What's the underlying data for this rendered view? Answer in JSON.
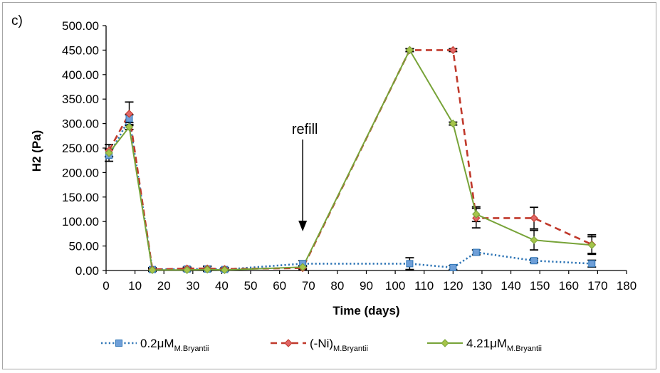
{
  "chart_data": {
    "type": "line",
    "panel_label": "c)",
    "xlabel": "Time (days)",
    "ylabel": "H2  (Pa)",
    "xlim": [
      0,
      180
    ],
    "ylim": [
      0,
      500
    ],
    "x_ticks": [
      "0",
      "10",
      "20",
      "30",
      "40",
      "50",
      "60",
      "70",
      "80",
      "90",
      "100",
      "110",
      "120",
      "130",
      "140",
      "150",
      "160",
      "170",
      "180"
    ],
    "y_ticks": [
      "0.00",
      "50.00",
      "100.00",
      "150.00",
      "200.00",
      "250.00",
      "300.00",
      "350.00",
      "400.00",
      "450.00",
      "500.00"
    ],
    "grid": false,
    "legend_position": "bottom",
    "annotations": [
      {
        "text": "refill",
        "x": 68,
        "y": 80
      }
    ],
    "series": [
      {
        "name": "0.2μM",
        "name_sub": "M.Bryantii",
        "color": "#2e75b6",
        "marker_color": "#6f9fd8",
        "marker": "square",
        "line_style": "dotted",
        "x": [
          1,
          8,
          16,
          28,
          35,
          41,
          68,
          105,
          120,
          128,
          148,
          168
        ],
        "y": [
          235,
          310,
          2,
          3,
          3,
          2,
          14,
          14,
          6,
          37,
          20,
          14
        ],
        "err": [
          12,
          8,
          4,
          3,
          5,
          3,
          6,
          12,
          4,
          5,
          4,
          7
        ]
      },
      {
        "name": "(-Ni)",
        "name_sub": "M.Bryantii",
        "color": "#c0392b",
        "marker_color": "#e06666",
        "marker": "diamond",
        "line_style": "dashed",
        "x": [
          1,
          8,
          16,
          28,
          35,
          41,
          68,
          105,
          120,
          128,
          148,
          168
        ],
        "y": [
          245,
          320,
          2,
          4,
          4,
          3,
          5,
          450,
          450,
          107,
          107,
          53
        ],
        "err": [
          12,
          24,
          3,
          3,
          5,
          3,
          3,
          3,
          3,
          20,
          22,
          20
        ]
      },
      {
        "name": "4.21μM",
        "name_sub": "M.Bryantii",
        "color": "#77a338",
        "marker_color": "#a6c44a",
        "marker": "diamond",
        "line_style": "solid",
        "x": [
          1,
          8,
          16,
          28,
          35,
          41,
          68,
          105,
          120,
          128,
          148,
          168
        ],
        "y": [
          240,
          293,
          1,
          1,
          2,
          1,
          7,
          450,
          300,
          115,
          62,
          52
        ],
        "err": [
          8,
          5,
          2,
          2,
          2,
          2,
          3,
          3,
          3,
          15,
          20,
          17
        ]
      }
    ]
  }
}
